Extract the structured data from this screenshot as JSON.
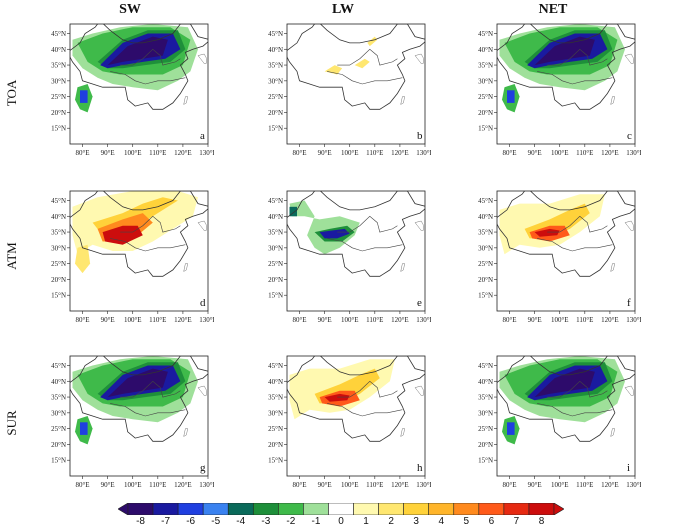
{
  "columns": [
    "SW",
    "LW",
    "NET"
  ],
  "rows": [
    "TOA",
    "ATM",
    "SUR"
  ],
  "lat_ticks": [
    "15°N",
    "20°N",
    "25°N",
    "30°N",
    "35°N",
    "40°N",
    "45°N"
  ],
  "lon_ticks": [
    "80°E",
    "90°E",
    "100°E",
    "110°E",
    "120°E",
    "130°E"
  ],
  "panel_labels": [
    "a",
    "b",
    "c",
    "d",
    "e",
    "f",
    "g",
    "h",
    "i"
  ],
  "colorbar": {
    "labels": [
      "-8",
      "-7",
      "-6",
      "-5",
      "-4",
      "-3",
      "-2",
      "-1",
      "0",
      "1",
      "2",
      "3",
      "4",
      "5",
      "6",
      "7",
      "8"
    ],
    "colors": [
      "#2d0b6b",
      "#1a1aa0",
      "#1f3fe0",
      "#3a82f0",
      "#0a6a5a",
      "#1e8f3a",
      "#3fba4a",
      "#9fe09a",
      "#ffffff",
      "#fff9b0",
      "#ffe770",
      "#ffd23a",
      "#ffb52a",
      "#ff8a1e",
      "#ff5a1a",
      "#e62a12",
      "#cc0d0d"
    ]
  },
  "panels": [
    {
      "id": "a",
      "field": "neg_strong"
    },
    {
      "id": "b",
      "field": "weak_pos"
    },
    {
      "id": "c",
      "field": "neg_strong"
    },
    {
      "id": "d",
      "field": "pos_strong"
    },
    {
      "id": "e",
      "field": "neg_mid"
    },
    {
      "id": "f",
      "field": "pos_mid"
    },
    {
      "id": "g",
      "field": "neg_strong"
    },
    {
      "id": "h",
      "field": "pos_mid"
    },
    {
      "id": "i",
      "field": "neg_strong"
    }
  ]
}
